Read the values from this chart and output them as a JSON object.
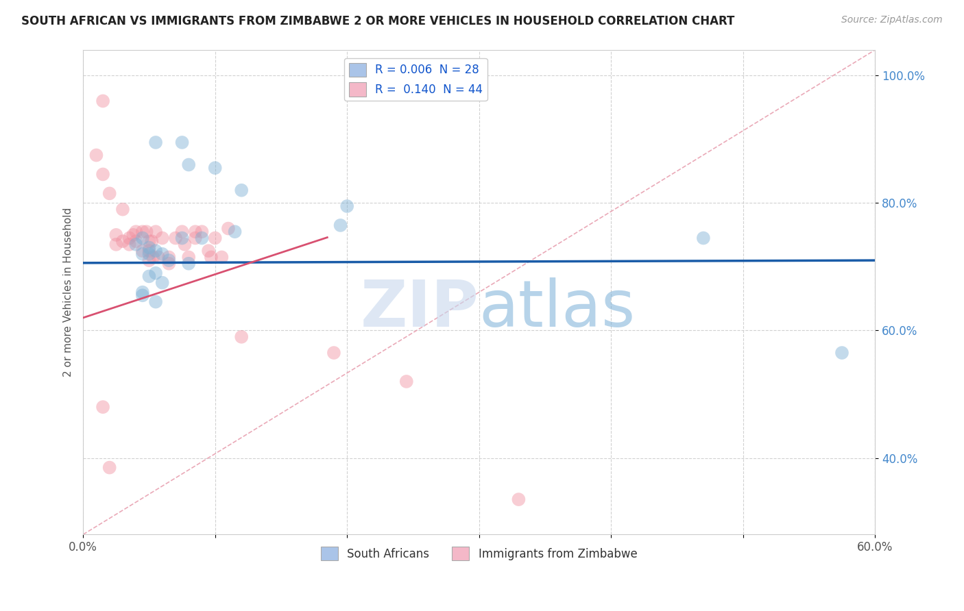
{
  "title": "SOUTH AFRICAN VS IMMIGRANTS FROM ZIMBABWE 2 OR MORE VEHICLES IN HOUSEHOLD CORRELATION CHART",
  "source": "Source: ZipAtlas.com",
  "ylabel": "2 or more Vehicles in Household",
  "x_min": 0.0,
  "x_max": 0.6,
  "y_min": 0.28,
  "y_max": 1.04,
  "x_ticks": [
    0.0,
    0.1,
    0.2,
    0.3,
    0.4,
    0.5,
    0.6
  ],
  "y_ticks": [
    0.4,
    0.6,
    0.8,
    1.0
  ],
  "legend_entries": [
    {
      "color": "#aac4e8",
      "label": "R = 0.006  N = 28"
    },
    {
      "color": "#f4b8c8",
      "label": "R =  0.140  N = 44"
    }
  ],
  "legend_bottom": [
    {
      "color": "#aac4e8",
      "label": "South Africans"
    },
    {
      "color": "#f4b8c8",
      "label": "Immigrants from Zimbabwe"
    }
  ],
  "blue_scatter_x": [
    0.285,
    0.055,
    0.075,
    0.08,
    0.1,
    0.12,
    0.045,
    0.05,
    0.05,
    0.055,
    0.06,
    0.065,
    0.075,
    0.08,
    0.09,
    0.115,
    0.2,
    0.195,
    0.045,
    0.05,
    0.055,
    0.06,
    0.045,
    0.045,
    0.055,
    0.47,
    0.575,
    0.04
  ],
  "blue_scatter_y": [
    1.0,
    0.895,
    0.895,
    0.86,
    0.855,
    0.82,
    0.745,
    0.73,
    0.72,
    0.725,
    0.72,
    0.71,
    0.745,
    0.705,
    0.745,
    0.755,
    0.795,
    0.765,
    0.72,
    0.685,
    0.69,
    0.675,
    0.66,
    0.655,
    0.645,
    0.745,
    0.565,
    0.735
  ],
  "pink_scatter_x": [
    0.015,
    0.01,
    0.015,
    0.02,
    0.025,
    0.025,
    0.03,
    0.03,
    0.035,
    0.035,
    0.038,
    0.04,
    0.04,
    0.045,
    0.045,
    0.048,
    0.05,
    0.05,
    0.05,
    0.052,
    0.053,
    0.055,
    0.057,
    0.06,
    0.065,
    0.065,
    0.07,
    0.075,
    0.077,
    0.08,
    0.085,
    0.085,
    0.09,
    0.095,
    0.097,
    0.1,
    0.105,
    0.11,
    0.12,
    0.19,
    0.245,
    0.33,
    0.015,
    0.02
  ],
  "pink_scatter_y": [
    0.96,
    0.875,
    0.845,
    0.815,
    0.75,
    0.735,
    0.79,
    0.74,
    0.745,
    0.735,
    0.75,
    0.755,
    0.74,
    0.755,
    0.725,
    0.755,
    0.74,
    0.725,
    0.71,
    0.74,
    0.715,
    0.755,
    0.715,
    0.745,
    0.715,
    0.705,
    0.745,
    0.755,
    0.735,
    0.715,
    0.755,
    0.745,
    0.755,
    0.725,
    0.715,
    0.745,
    0.715,
    0.76,
    0.59,
    0.565,
    0.52,
    0.335,
    0.48,
    0.385
  ],
  "blue_line_x": [
    0.0,
    0.6
  ],
  "blue_line_y": [
    0.706,
    0.71
  ],
  "pink_line_x": [
    0.0,
    0.185
  ],
  "pink_line_y": [
    0.62,
    0.746
  ],
  "diagonal_line_x": [
    0.0,
    0.6
  ],
  "diagonal_line_y": [
    0.28,
    1.04
  ],
  "blue_dot_color": "#7bafd4",
  "pink_dot_color": "#f090a0",
  "blue_line_color": "#1a5ca8",
  "pink_line_color": "#d85070",
  "diagonal_color": "#e8a0b0",
  "grid_color": "#cccccc",
  "watermark_zip": "ZIP",
  "watermark_atlas": "atlas",
  "background_color": "#ffffff"
}
